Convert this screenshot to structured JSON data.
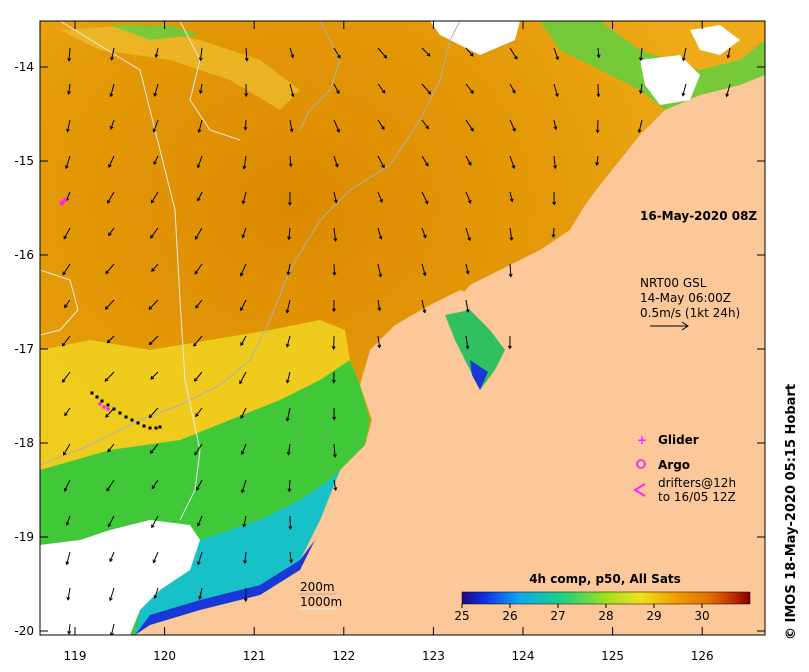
{
  "map": {
    "date_label": "16-May-2020 08Z",
    "current_source": {
      "model": "NRT00 GSL",
      "time": "14-May 06:00Z",
      "scale": "0.5m/s (1kt 24h)"
    },
    "legend": {
      "glider": "Glider",
      "argo": "Argo",
      "drifters_line1": "drifters@12h",
      "drifters_line2": "to 16/05 12Z"
    },
    "bathymetry": {
      "contour_1": "200m",
      "contour_2": "1000m"
    },
    "colorbar": {
      "title": "4h comp, p50, All Sats",
      "ticks": [
        "25",
        "26",
        "27",
        "28",
        "29",
        "30"
      ],
      "min": 25,
      "max": 31,
      "colors": [
        "#1a0a80",
        "#1030e0",
        "#10a8f0",
        "#20d080",
        "#a0e020",
        "#f0e020",
        "#f0a000",
        "#e07000",
        "#c03000",
        "#800000"
      ]
    },
    "x_ticks": [
      "119",
      "120",
      "121",
      "122",
      "123",
      "124",
      "125",
      "126"
    ],
    "y_ticks": [
      "-14",
      "-15",
      "-16",
      "-17",
      "-18",
      "-19",
      "-20"
    ],
    "credit": "© IMOS 18-May-2020 05:15 Hobart",
    "colors": {
      "land": "#fcc89a",
      "warm": "#e09000",
      "orange": "#f0a818",
      "yellow": "#f0d020",
      "green": "#40d030",
      "cyan": "#10c0d0",
      "blue": "#1838d8",
      "cloud": "#ffffff",
      "glider": "#ff20ff",
      "argo": "#e040e0"
    }
  }
}
